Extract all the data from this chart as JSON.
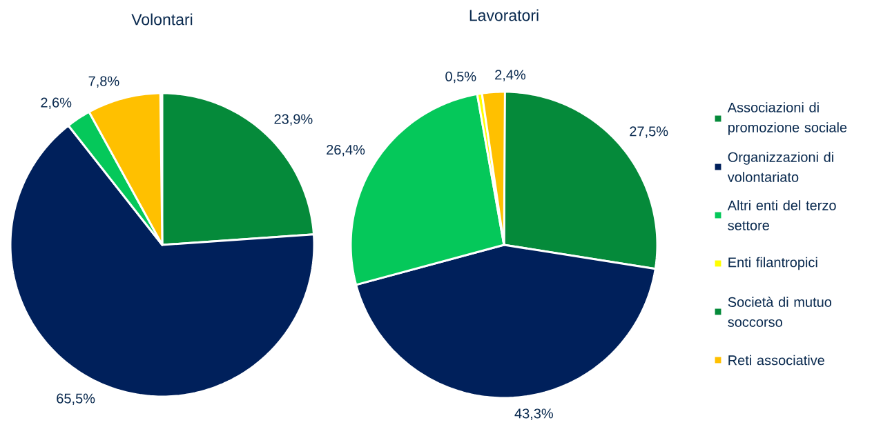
{
  "chart_data": [
    {
      "type": "pie",
      "title": "Volontari",
      "values": [
        23.9,
        65.5,
        2.6,
        null,
        null,
        7.8
      ],
      "value_labels": [
        "23,9%",
        "65,5%",
        "2,6%",
        null,
        null,
        "7,8%"
      ],
      "colors": [
        "#058a3a",
        "#00205b",
        "#05c85a",
        "#ffff00",
        "#058a3a",
        "#ffc000"
      ],
      "legend": false
    },
    {
      "type": "pie",
      "title": "Lavoratori",
      "categories": [
        "Associazioni di promozione sociale",
        "Organizzazioni di volontariato",
        "Altri enti del terzo settore",
        "Enti filantropici",
        "Società di mutuo soccorso",
        "Reti associative"
      ],
      "values": [
        27.5,
        43.3,
        26.4,
        0.5,
        null,
        2.4
      ],
      "value_labels": [
        "27,5%",
        "43,3%",
        "26,4%",
        "0,5%",
        null,
        "2,4%"
      ],
      "colors": [
        "#058a3a",
        "#00205b",
        "#05c85a",
        "#ffff00",
        "#058a3a",
        "#ffc000"
      ],
      "legend": "right"
    }
  ]
}
